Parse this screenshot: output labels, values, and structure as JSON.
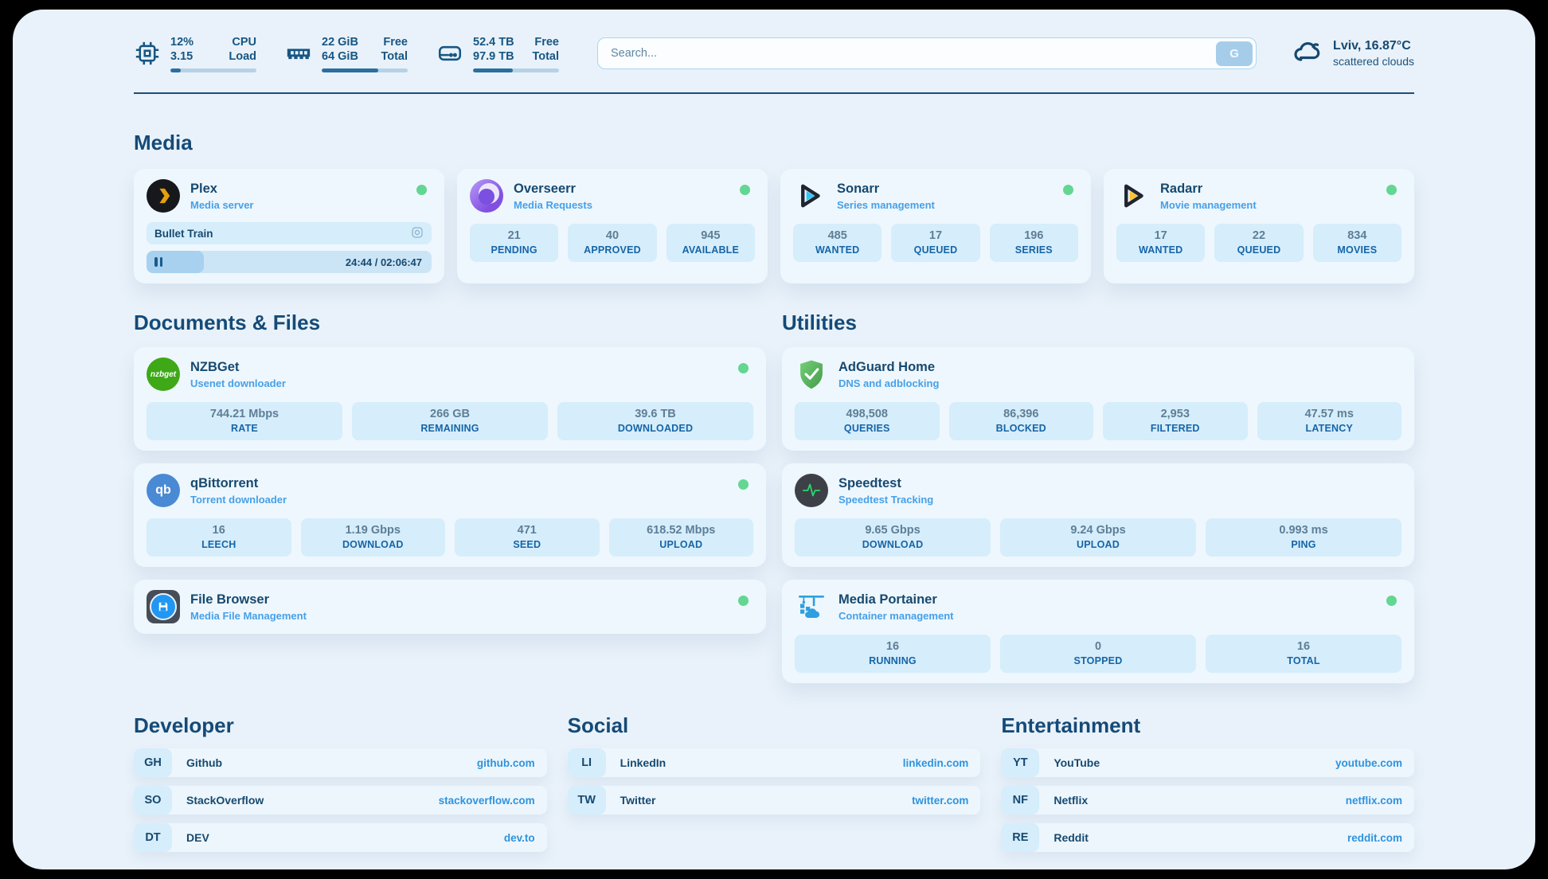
{
  "colors": {
    "status_online": "#63d691",
    "accent_blue": "#2e93de",
    "navy_text": "#17496f",
    "stat_box": "#d6edfb"
  },
  "header": {
    "stats": [
      {
        "icon": "cpu-icon",
        "line1_value": "12%",
        "line2_value": "3.15",
        "line1_label": "CPU",
        "line2_label": "Load",
        "progress_pct": 12
      },
      {
        "icon": "ram-icon",
        "line1_value": "22 GiB",
        "line2_value": "64 GiB",
        "line1_label": "Free",
        "line2_label": "Total",
        "progress_pct": 66
      },
      {
        "icon": "disk-icon",
        "line1_value": "52.4 TB",
        "line2_value": "97.9 TB",
        "line1_label": "Free",
        "line2_label": "Total",
        "progress_pct": 46
      }
    ],
    "search": {
      "placeholder": "Search...",
      "button_label": "G"
    },
    "weather": {
      "location": "Lviv, 16.87°C",
      "condition": "scattered clouds"
    }
  },
  "sections": {
    "media": {
      "title": "Media",
      "cards": [
        {
          "title": "Plex",
          "subtitle": "Media server",
          "status": "online",
          "player": {
            "track": "Bullet Train",
            "time_display": "24:44 / 02:06:47",
            "progress_pct": 20
          }
        },
        {
          "title": "Overseerr",
          "subtitle": "Media Requests",
          "status": "online",
          "stats": [
            {
              "value": "21",
              "label": "PENDING"
            },
            {
              "value": "40",
              "label": "APPROVED"
            },
            {
              "value": "945",
              "label": "AVAILABLE"
            }
          ]
        },
        {
          "title": "Sonarr",
          "subtitle": "Series management",
          "status": "online",
          "stats": [
            {
              "value": "485",
              "label": "WANTED"
            },
            {
              "value": "17",
              "label": "QUEUED"
            },
            {
              "value": "196",
              "label": "SERIES"
            }
          ]
        },
        {
          "title": "Radarr",
          "subtitle": "Movie management",
          "status": "online",
          "stats": [
            {
              "value": "17",
              "label": "WANTED"
            },
            {
              "value": "22",
              "label": "QUEUED"
            },
            {
              "value": "834",
              "label": "MOVIES"
            }
          ]
        }
      ]
    },
    "documents": {
      "title": "Documents & Files",
      "cards": [
        {
          "title": "NZBGet",
          "subtitle": "Usenet downloader",
          "status": "online",
          "icon_text": "nzbget",
          "stats": [
            {
              "value": "744.21 Mbps",
              "label": "RATE"
            },
            {
              "value": "266 GB",
              "label": "REMAINING"
            },
            {
              "value": "39.6 TB",
              "label": "DOWNLOADED"
            }
          ]
        },
        {
          "title": "qBittorrent",
          "subtitle": "Torrent downloader",
          "status": "online",
          "icon_text": "qb",
          "stats": [
            {
              "value": "16",
              "label": "LEECH"
            },
            {
              "value": "1.19 Gbps",
              "label": "DOWNLOAD"
            },
            {
              "value": "471",
              "label": "SEED"
            },
            {
              "value": "618.52 Mbps",
              "label": "UPLOAD"
            }
          ]
        },
        {
          "title": "File Browser",
          "subtitle": "Media File Management",
          "status": "online"
        }
      ]
    },
    "utilities": {
      "title": "Utilities",
      "cards": [
        {
          "title": "AdGuard Home",
          "subtitle": "DNS and adblocking",
          "stats": [
            {
              "value": "498,508",
              "label": "QUERIES"
            },
            {
              "value": "86,396",
              "label": "BLOCKED"
            },
            {
              "value": "2,953",
              "label": "FILTERED"
            },
            {
              "value": "47.57 ms",
              "label": "LATENCY"
            }
          ]
        },
        {
          "title": "Speedtest",
          "subtitle": "Speedtest Tracking",
          "stats": [
            {
              "value": "9.65 Gbps",
              "label": "DOWNLOAD"
            },
            {
              "value": "9.24 Gbps",
              "label": "UPLOAD"
            },
            {
              "value": "0.993 ms",
              "label": "PING"
            }
          ]
        },
        {
          "title": "Media Portainer",
          "subtitle": "Container management",
          "status": "online",
          "stats": [
            {
              "value": "16",
              "label": "RUNNING"
            },
            {
              "value": "0",
              "label": "STOPPED"
            },
            {
              "value": "16",
              "label": "TOTAL"
            }
          ]
        }
      ]
    },
    "developer": {
      "title": "Developer",
      "links": [
        {
          "abbr": "GH",
          "name": "Github",
          "url": "github.com"
        },
        {
          "abbr": "SO",
          "name": "StackOverflow",
          "url": "stackoverflow.com"
        },
        {
          "abbr": "DT",
          "name": "DEV",
          "url": "dev.to"
        }
      ]
    },
    "social": {
      "title": "Social",
      "links": [
        {
          "abbr": "LI",
          "name": "LinkedIn",
          "url": "linkedin.com"
        },
        {
          "abbr": "TW",
          "name": "Twitter",
          "url": "twitter.com"
        }
      ]
    },
    "entertainment": {
      "title": "Entertainment",
      "links": [
        {
          "abbr": "YT",
          "name": "YouTube",
          "url": "youtube.com"
        },
        {
          "abbr": "NF",
          "name": "Netflix",
          "url": "netflix.com"
        },
        {
          "abbr": "RE",
          "name": "Reddit",
          "url": "reddit.com"
        }
      ]
    }
  }
}
